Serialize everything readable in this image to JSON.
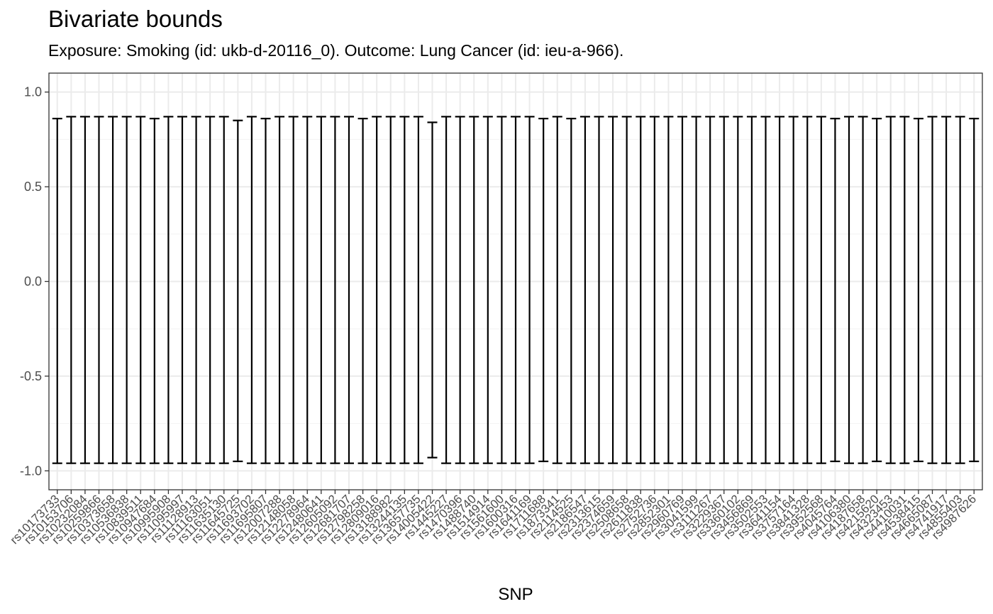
{
  "chart_data": {
    "type": "errorbar",
    "title": "Bivariate bounds",
    "subtitle": "Exposure: Smoking (id: ukb-d-20116_0). Outcome: Lung Cancer (id: ieu-a-966).",
    "xlabel": "SNP",
    "ylabel": "",
    "ylim": [
      -1.1,
      1.1
    ],
    "yticks": [
      1.0,
      0.5,
      0.0,
      -0.5,
      -1.0
    ],
    "ytick_labels": [
      "1.0",
      "0.5",
      "0.0",
      "-0.5",
      "-1.0"
    ],
    "grid": true,
    "legend": "none",
    "categories": [
      "rs10173733",
      "rs10153706",
      "rs10232084",
      "rs10259866",
      "rs10373658",
      "rs10536838",
      "rs10839511",
      "rs10947684",
      "rs10995908",
      "rs11095997",
      "rs11128913",
      "rs11163051",
      "rs11635130",
      "rs11645725",
      "rs11693702",
      "rs11695807",
      "rs12007288",
      "rs12148058",
      "rs12278964",
      "rs12480641",
      "rs12605092",
      "rs12681707",
      "rs12798258",
      "rs12809016",
      "rs13188982",
      "rs13244135",
      "rs13657735",
      "rs14005422",
      "rs1445227",
      "rs1470396",
      "rs1488740",
      "rs1514914",
      "rs1561600",
      "rs1600316",
      "rs1641169",
      "rs1711688",
      "rs1873341",
      "rs2114525",
      "rs2186547",
      "rs2313615",
      "rs2374659",
      "rs2508658",
      "rs2611838",
      "rs2752736",
      "rs2852301",
      "rs2960769",
      "rs3041599",
      "rs3111267",
      "rs3229367",
      "rs3360102",
      "rs3456869",
      "rs3502553",
      "rs3641154",
      "rs3757164",
      "rs3841328",
      "rs3952568",
      "rs4045764",
      "rs4106380",
      "rs4187658",
      "rs4215620",
      "rs4323453",
      "rs4410031",
      "rs4538415",
      "rs4665087",
      "rs4741917",
      "rs4855403",
      "rs4987626"
    ],
    "upper": [
      0.86,
      0.87,
      0.87,
      0.87,
      0.87,
      0.87,
      0.87,
      0.86,
      0.87,
      0.87,
      0.87,
      0.87,
      0.87,
      0.85,
      0.87,
      0.86,
      0.87,
      0.87,
      0.87,
      0.87,
      0.87,
      0.87,
      0.86,
      0.87,
      0.87,
      0.87,
      0.87,
      0.84,
      0.87,
      0.87,
      0.87,
      0.87,
      0.87,
      0.87,
      0.87,
      0.86,
      0.87,
      0.86,
      0.87,
      0.87,
      0.87,
      0.87,
      0.87,
      0.87,
      0.87,
      0.87,
      0.87,
      0.87,
      0.87,
      0.87,
      0.87,
      0.87,
      0.87,
      0.87,
      0.87,
      0.87,
      0.86,
      0.87,
      0.87,
      0.86,
      0.87,
      0.87,
      0.86,
      0.87,
      0.87,
      0.87,
      0.86
    ],
    "lower": [
      -0.96,
      -0.96,
      -0.96,
      -0.96,
      -0.96,
      -0.96,
      -0.96,
      -0.96,
      -0.96,
      -0.96,
      -0.96,
      -0.96,
      -0.96,
      -0.95,
      -0.96,
      -0.96,
      -0.96,
      -0.96,
      -0.96,
      -0.96,
      -0.96,
      -0.96,
      -0.96,
      -0.96,
      -0.96,
      -0.96,
      -0.96,
      -0.93,
      -0.96,
      -0.96,
      -0.96,
      -0.96,
      -0.96,
      -0.96,
      -0.96,
      -0.95,
      -0.96,
      -0.96,
      -0.96,
      -0.96,
      -0.96,
      -0.96,
      -0.96,
      -0.96,
      -0.96,
      -0.96,
      -0.96,
      -0.96,
      -0.96,
      -0.96,
      -0.96,
      -0.96,
      -0.96,
      -0.96,
      -0.96,
      -0.96,
      -0.95,
      -0.96,
      -0.96,
      -0.95,
      -0.96,
      -0.96,
      -0.95,
      -0.96,
      -0.96,
      -0.96,
      -0.95
    ]
  }
}
